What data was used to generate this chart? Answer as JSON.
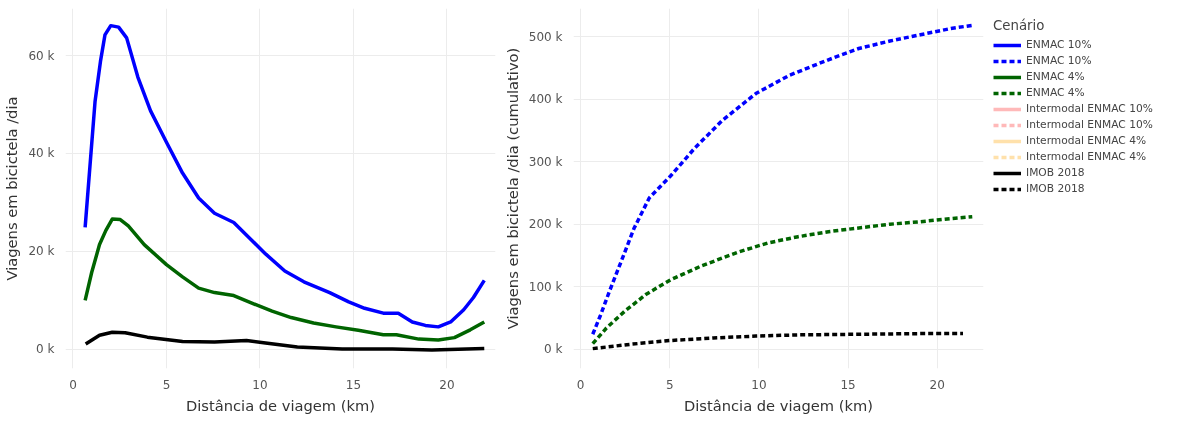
{
  "chart_data": [
    {
      "type": "line",
      "xlabel": "Distância de viagem (km)",
      "ylabel": "Viagens em bicictela /dia",
      "xlim": [
        -0.4,
        22.6
      ],
      "ylim": [
        -3900,
        69600
      ],
      "xticks": [
        0,
        5,
        10,
        15,
        20
      ],
      "yticks": [
        {
          "value": 0,
          "label": "0 k"
        },
        {
          "value": 20000,
          "label": "20 k"
        },
        {
          "value": 40000,
          "label": "40 k"
        },
        {
          "value": 60000,
          "label": "60 k"
        }
      ],
      "grid": true,
      "legend": "right",
      "series": [
        {
          "name": "ENMAC 10%",
          "color": "#0000ff",
          "line_style": "solid",
          "x": [
            0.65,
            1.18,
            1.47,
            1.71,
            2.02,
            2.44,
            2.87,
            3.47,
            4.15,
            5.0,
            5.86,
            6.72,
            7.57,
            8.6,
            9.45,
            10.3,
            11.33,
            12.35,
            13.73,
            14.75,
            15.6,
            16.6,
            17.4,
            18.15,
            18.85,
            19.54,
            20.2,
            20.9,
            21.42,
            22.0
          ],
          "values": [
            24900,
            50600,
            58800,
            64200,
            66100,
            65800,
            63600,
            55600,
            48700,
            42300,
            36000,
            30900,
            27800,
            25900,
            22700,
            19500,
            16000,
            13800,
            11600,
            9700,
            8400,
            7400,
            7400,
            5600,
            4900,
            4600,
            5600,
            8100,
            10600,
            14100
          ]
        },
        {
          "name": "ENMAC 4%",
          "color": "#006400",
          "line_style": "solid",
          "x": [
            0.65,
            1.0,
            1.42,
            1.76,
            2.1,
            2.53,
            2.96,
            3.81,
            5.0,
            5.86,
            6.72,
            7.57,
            8.6,
            9.6,
            10.65,
            11.67,
            12.87,
            14.07,
            15.26,
            16.6,
            17.3,
            18.5,
            19.54,
            20.4,
            21.25,
            22.0
          ],
          "values": [
            10000,
            15700,
            21400,
            24300,
            26600,
            26500,
            25200,
            21400,
            17300,
            14800,
            12500,
            11600,
            11000,
            9400,
            7800,
            6500,
            5400,
            4600,
            3900,
            3000,
            3000,
            2100,
            1900,
            2400,
            4000,
            5600
          ]
        },
        {
          "name": "Intermodal ENMAC 10%",
          "color": "#ff8080",
          "line_style": "solid"
        },
        {
          "name": "Intermodal ENMAC 4%",
          "color": "#ffc966",
          "line_style": "solid"
        },
        {
          "name": "IMOB 2018",
          "color": "#000000",
          "line_style": "solid",
          "x": [
            0.68,
            1.42,
            2.1,
            2.79,
            3.98,
            5.86,
            7.57,
            9.28,
            10.3,
            12.0,
            14.4,
            17.1,
            19.2,
            22.0
          ],
          "values": [
            1100,
            2900,
            3500,
            3400,
            2500,
            1600,
            1500,
            1800,
            1300,
            500,
            100,
            100,
            -100,
            200
          ]
        }
      ]
    },
    {
      "type": "line",
      "xlabel": "Distância de viagem (km)",
      "ylabel": "Viagens em bicictela /dia (cumulativo)",
      "legend_title": "Cenário",
      "xlim": [
        -0.4,
        22.6
      ],
      "ylim": [
        -30800,
        545000
      ],
      "xticks": [
        0,
        5,
        10,
        15,
        20
      ],
      "yticks": [
        {
          "value": 0,
          "label": "0 k"
        },
        {
          "value": 100000,
          "label": "100 k"
        },
        {
          "value": 200000,
          "label": "200 k"
        },
        {
          "value": 300000,
          "label": "300 k"
        },
        {
          "value": 400000,
          "label": "400 k"
        },
        {
          "value": 500000,
          "label": "500 k"
        }
      ],
      "grid": true,
      "legend": "right",
      "series": [
        {
          "name": "ENMAC 10%",
          "color": "#0000ff",
          "line_style": "dashed",
          "x": [
            0.68,
            1.11,
            1.62,
            2.31,
            2.99,
            3.85,
            5.04,
            6.41,
            7.95,
            9.83,
            11.7,
            13.9,
            15.6,
            17.35,
            19.06,
            20.77,
            21.97
          ],
          "values": [
            24000,
            54000,
            93000,
            143000,
            193000,
            242000,
            277000,
            322000,
            366000,
            409000,
            438000,
            463000,
            481000,
            493000,
            503000,
            513000,
            518000
          ]
        },
        {
          "name": "ENMAC 4%",
          "color": "#006400",
          "line_style": "dashed",
          "x": [
            0.68,
            1.45,
            2.48,
            3.68,
            5.04,
            6.75,
            8.8,
            10.5,
            12.2,
            13.9,
            15.6,
            17.35,
            19.06,
            20.77,
            21.97
          ],
          "values": [
            9000,
            34000,
            61000,
            88000,
            111000,
            133000,
            155000,
            170000,
            180000,
            188000,
            194000,
            200000,
            204000,
            209000,
            212000
          ]
        },
        {
          "name": "Intermodal ENMAC 10%",
          "color": "#ff8080",
          "line_style": "dashed"
        },
        {
          "name": "Intermodal ENMAC 4%",
          "color": "#ffc966",
          "line_style": "dashed"
        },
        {
          "name": "IMOB 2018",
          "color": "#000000",
          "line_style": "dashed",
          "x": [
            0.68,
            2.82,
            5.04,
            7.44,
            9.83,
            12.2,
            15.6,
            19.06,
            21.45
          ],
          "values": [
            1000,
            8000,
            14000,
            18000,
            21000,
            23000,
            24000,
            25000,
            25000
          ]
        }
      ]
    }
  ]
}
